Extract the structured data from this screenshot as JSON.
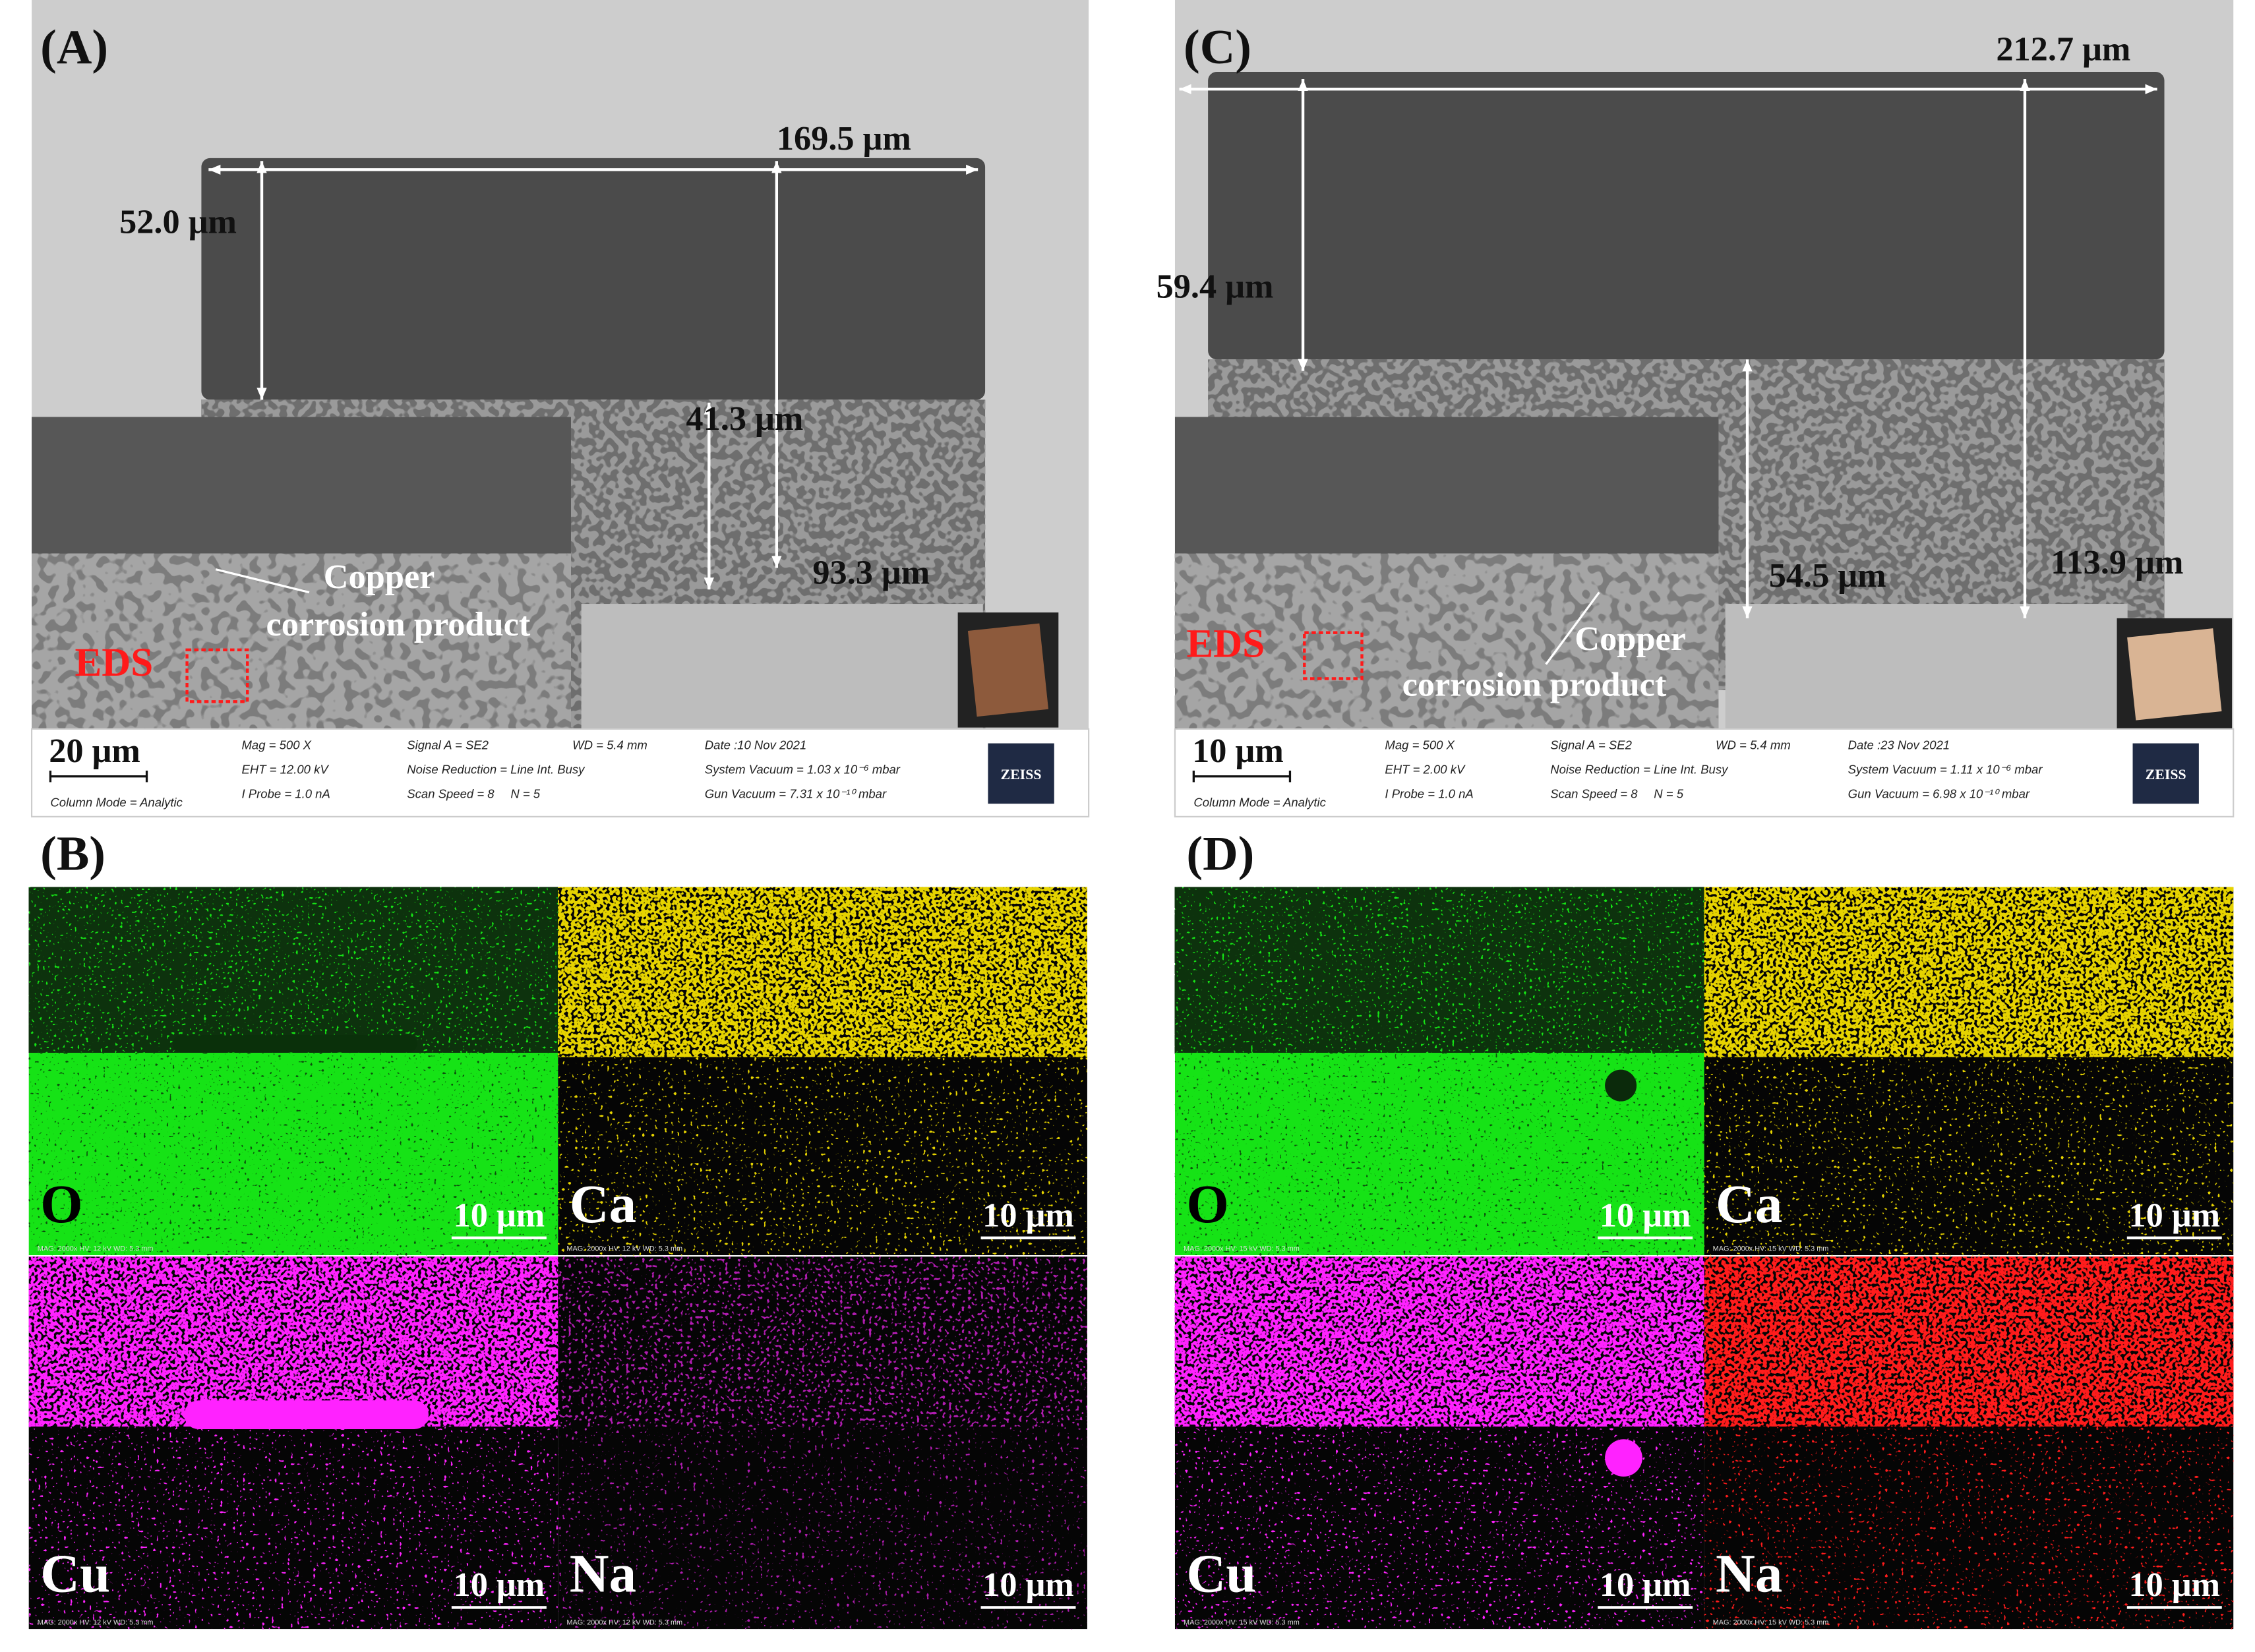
{
  "panels": [
    {
      "label": "(A)",
      "measurements": [
        "169.5 μm",
        "52.0 μm",
        "41.3 μm",
        "93.3 μm"
      ],
      "annotation": [
        "Copper",
        "corrosion product"
      ],
      "eds_label": "EDS",
      "scale_bar": "20 μm",
      "info": [
        "Mag = 500 X",
        "EHT = 12.00 kV",
        "I Probe = 1.0 nA",
        "Signal A = SE2",
        "Noise Reduction = Line Int. Busy",
        "Scan Speed = 8",
        "N = 5",
        "WD = 5.4 mm",
        "Date :10 Nov 2021",
        "System Vacuum = 1.03 x 10⁻⁶ mbar",
        "Gun Vacuum = 7.31 x 10⁻¹⁰ mbar",
        "Column Mode = Analytic"
      ],
      "brand": "ZEISS"
    },
    {
      "label": "(C)",
      "measurements": [
        "212.7 μm",
        "59.4 μm",
        "54.5 μm",
        "113.9 μm"
      ],
      "annotation": [
        "Copper",
        "corrosion product"
      ],
      "eds_label": "EDS",
      "scale_bar": "10 μm",
      "info": [
        "Mag = 500 X",
        "EHT = 2.00 kV",
        "I Probe = 1.0 nA",
        "Signal A = SE2",
        "Noise Reduction = Line Int. Busy",
        "Scan Speed = 8",
        "N = 5",
        "WD = 5.4 mm",
        "Date :23 Nov 2021",
        "System Vacuum = 1.11 x 10⁻⁶ mbar",
        "Gun Vacuum = 6.98 x 10⁻¹⁰ mbar",
        "Column Mode = Analytic"
      ],
      "brand": "ZEISS"
    }
  ],
  "maps": [
    {
      "label": "(B)",
      "tiles": [
        {
          "element": "O",
          "scale_bar": "10 μm",
          "footer": "MAG: 2000x  HV: 12 kV  WD: 5.3 mm"
        },
        {
          "element": "Ca",
          "scale_bar": "10 μm",
          "footer": "MAG: 2000x  HV: 12 kV  WD: 5.3 mm"
        },
        {
          "element": "Cu",
          "scale_bar": "10 μm",
          "footer": "MAG: 2000x  HV: 12 kV  WD: 5.3 mm"
        },
        {
          "element": "Na",
          "scale_bar": "10 μm",
          "footer": "MAG: 2000x  HV: 12 kV  WD: 5.3 mm"
        }
      ]
    },
    {
      "label": "(D)",
      "tiles": [
        {
          "element": "O",
          "scale_bar": "10 μm",
          "footer": "MAG: 2000x  HV: 15 kV  WD: 5.3 mm"
        },
        {
          "element": "Ca",
          "scale_bar": "10 μm",
          "footer": "MAG: 2000x  HV: 15 kV  WD: 5.3 mm"
        },
        {
          "element": "Cu",
          "scale_bar": "10 μm",
          "footer": "MAG: 2000x  HV: 15 kV  WD: 5.3 mm"
        },
        {
          "element": "Na",
          "scale_bar": "10 μm",
          "footer": "MAG: 2000x  HV: 15 kV  WD: 5.3 mm"
        }
      ]
    }
  ]
}
